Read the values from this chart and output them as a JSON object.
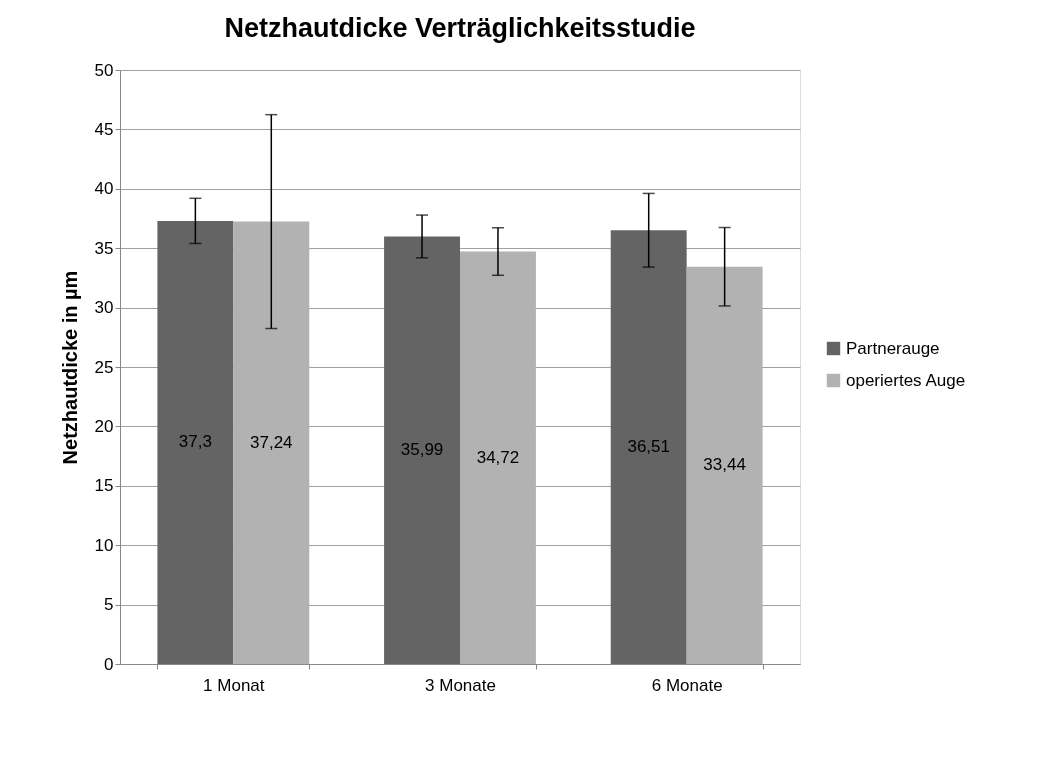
{
  "chart_data": {
    "type": "bar",
    "title": "Netzhautdicke Verträglichkeitsstudie",
    "ylabel": "Netzhautdicke in µm",
    "categories": [
      "1 Monat",
      "3 Monate",
      "6 Monate"
    ],
    "series": [
      {
        "name": "Partnerauge",
        "color": "#646464",
        "values": [
          37.3,
          35.99,
          36.51
        ],
        "value_labels": [
          "37,3",
          "35,99",
          "36,51"
        ],
        "errors": [
          1.9,
          1.8,
          3.1
        ]
      },
      {
        "name": "operiertes Auge",
        "color": "#b2b2b2",
        "values": [
          37.24,
          34.72,
          33.44
        ],
        "value_labels": [
          "37,24",
          "34,72",
          "33,44"
        ],
        "errors": [
          9.0,
          2.0,
          3.3
        ]
      }
    ],
    "ylim": [
      0,
      50
    ],
    "yticks": [
      0,
      5,
      10,
      15,
      20,
      25,
      30,
      35,
      40,
      45,
      50
    ],
    "grid": "y",
    "legend": "right"
  }
}
